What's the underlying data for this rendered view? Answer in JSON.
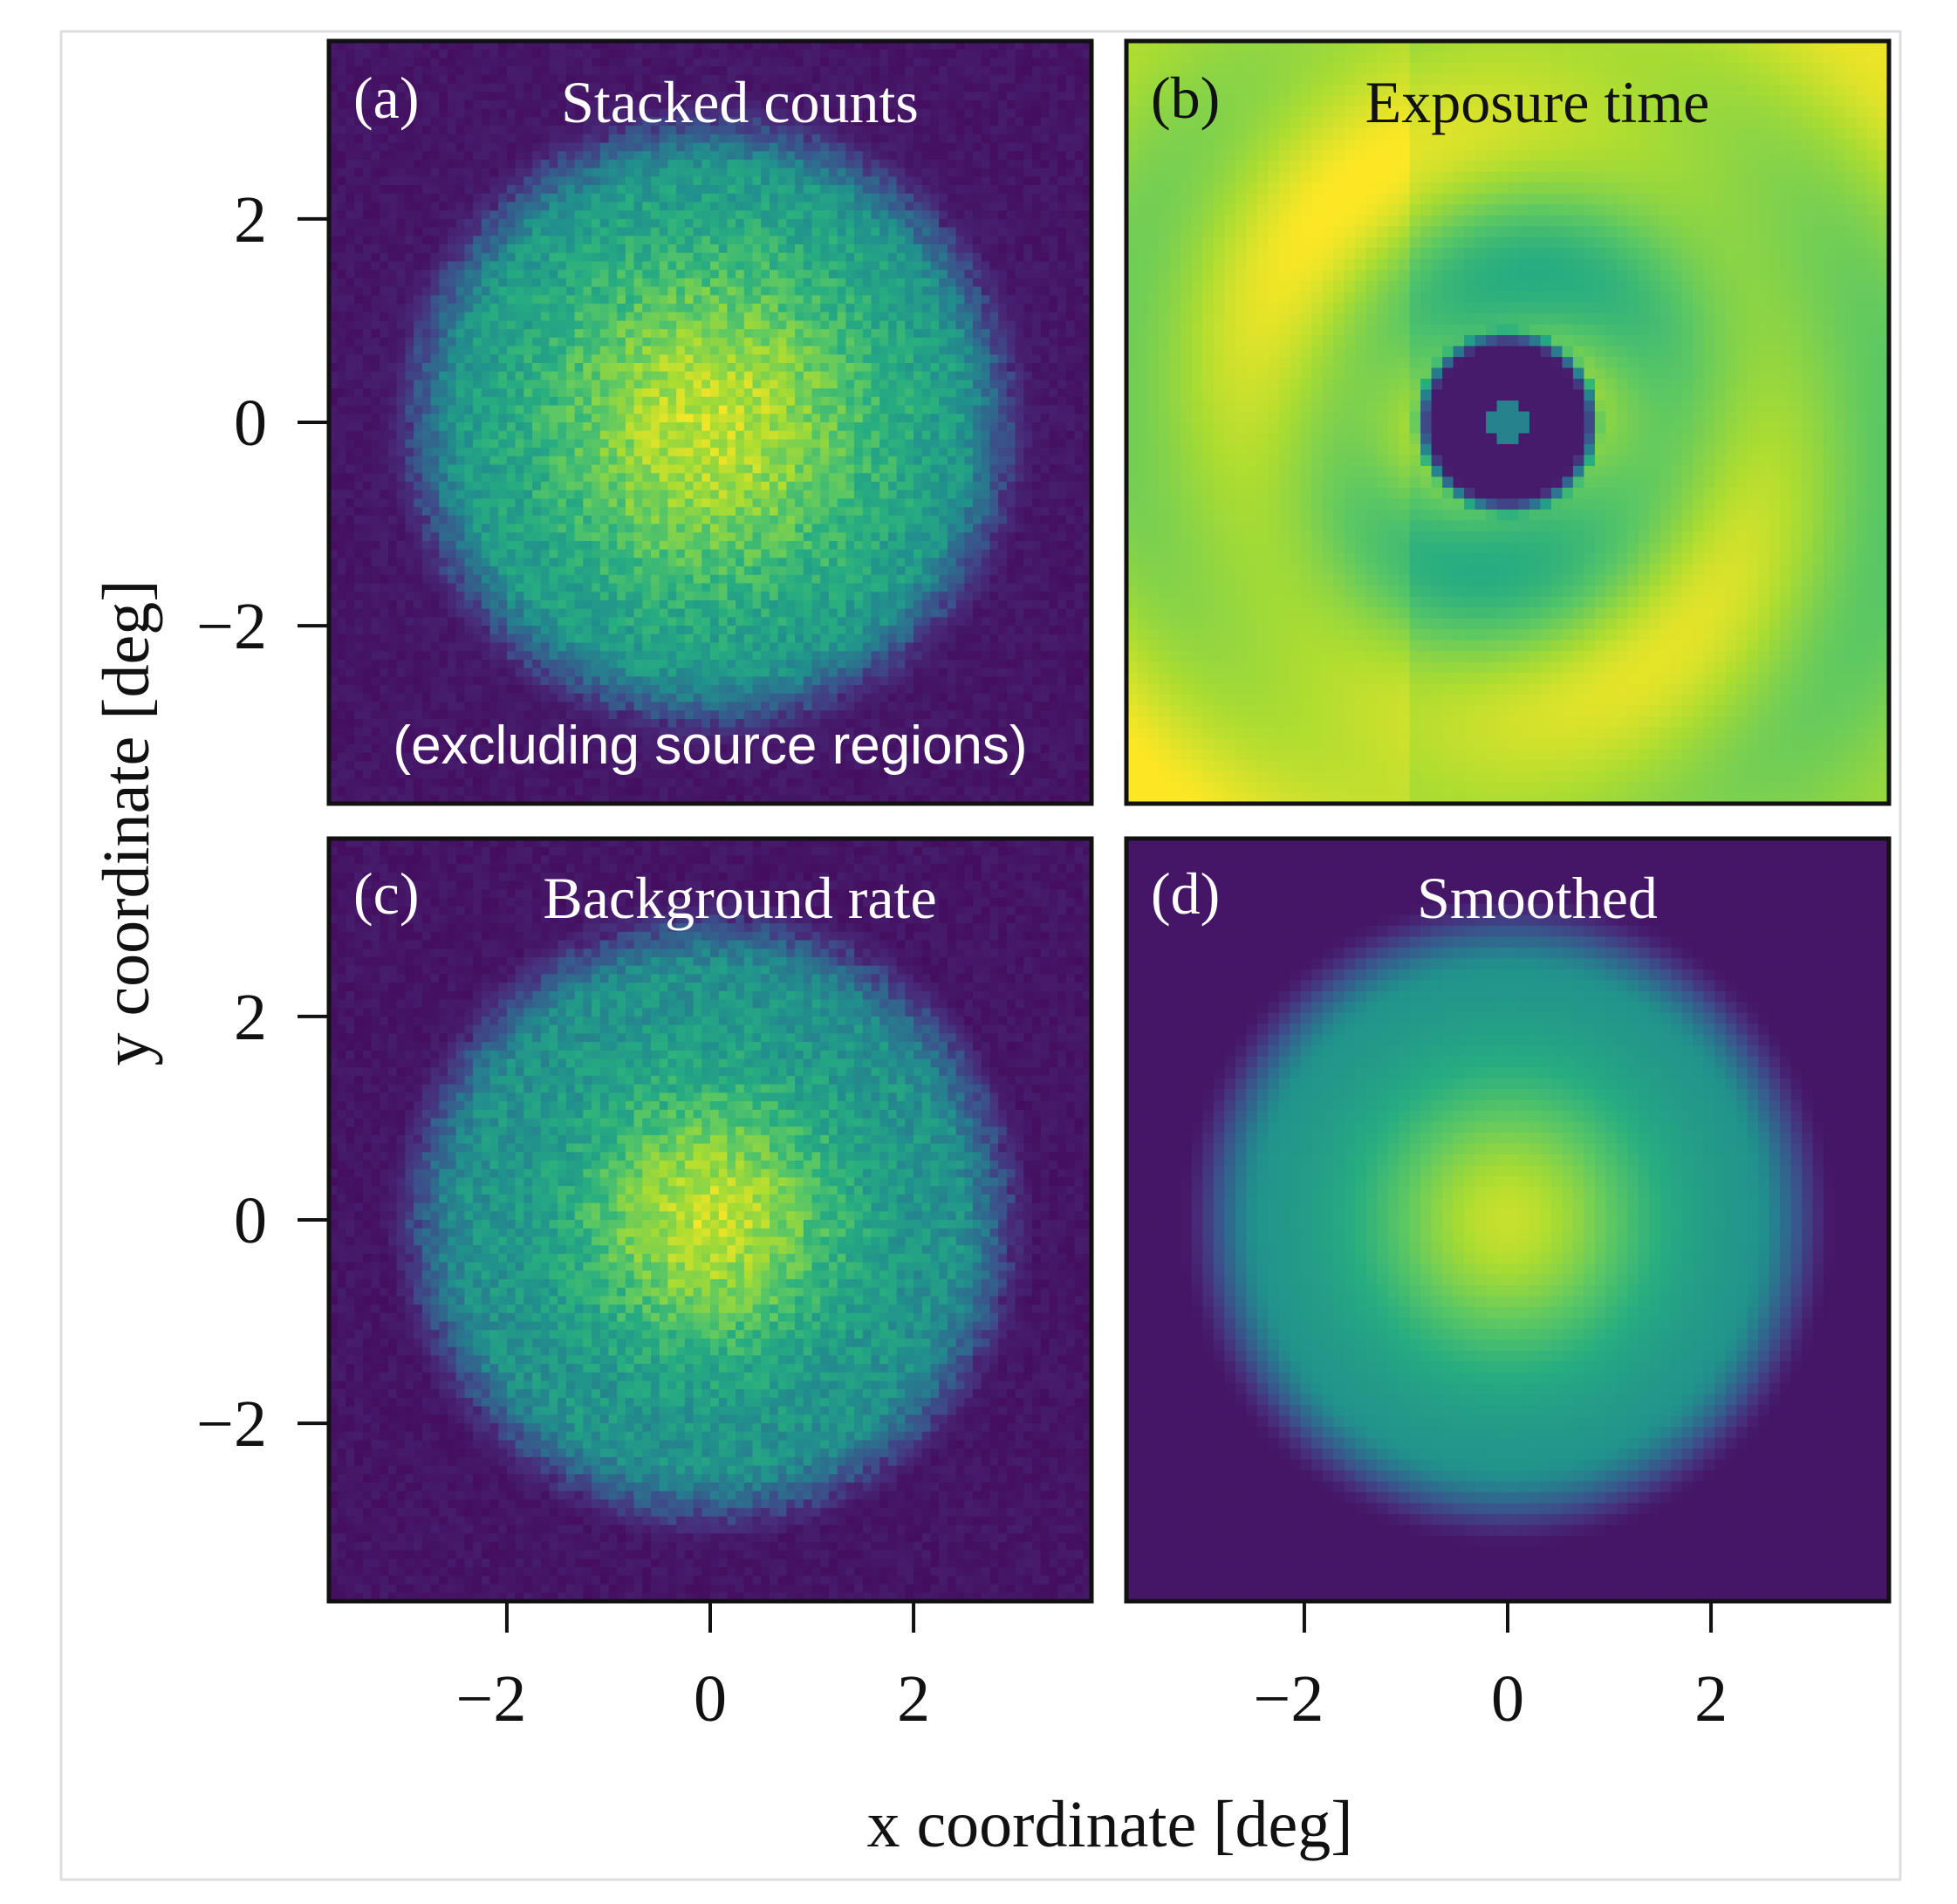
{
  "chart_data": {
    "type": "heatmap",
    "xlabel": "x coordinate [deg]",
    "ylabel": "y coordinate [deg]",
    "xlim": [
      -3.75,
      3.75
    ],
    "ylim": [
      -3.75,
      3.75
    ],
    "xticks": [
      -2,
      0,
      2
    ],
    "yticks": [
      -2,
      0,
      2
    ],
    "tick_labels": [
      "−2",
      "0",
      "2"
    ],
    "colormap": "viridis",
    "grid": false,
    "panels": [
      {
        "id": "a",
        "letter": "(a)",
        "title": "Stacked counts",
        "note": "(excluding source regions)",
        "model": "noisy_radial",
        "outer_radius_deg": 2.9,
        "core_radius_deg": 1.2,
        "noise": true
      },
      {
        "id": "b",
        "letter": "(b)",
        "title": "Exposure time",
        "model": "exposure",
        "hole_center_deg": [
          0.0,
          0.0
        ],
        "hole_radius_deg": 0.85,
        "noise": false
      },
      {
        "id": "c",
        "letter": "(c)",
        "title": "Background rate",
        "model": "noisy_radial",
        "outer_radius_deg": 2.9,
        "core_radius_deg": 0.9,
        "noise": true
      },
      {
        "id": "d",
        "letter": "(d)",
        "title": "Smoothed",
        "model": "smooth_radial",
        "outer_radius_deg": 2.9,
        "core_radius_deg": 1.0,
        "noise": false
      }
    ]
  }
}
